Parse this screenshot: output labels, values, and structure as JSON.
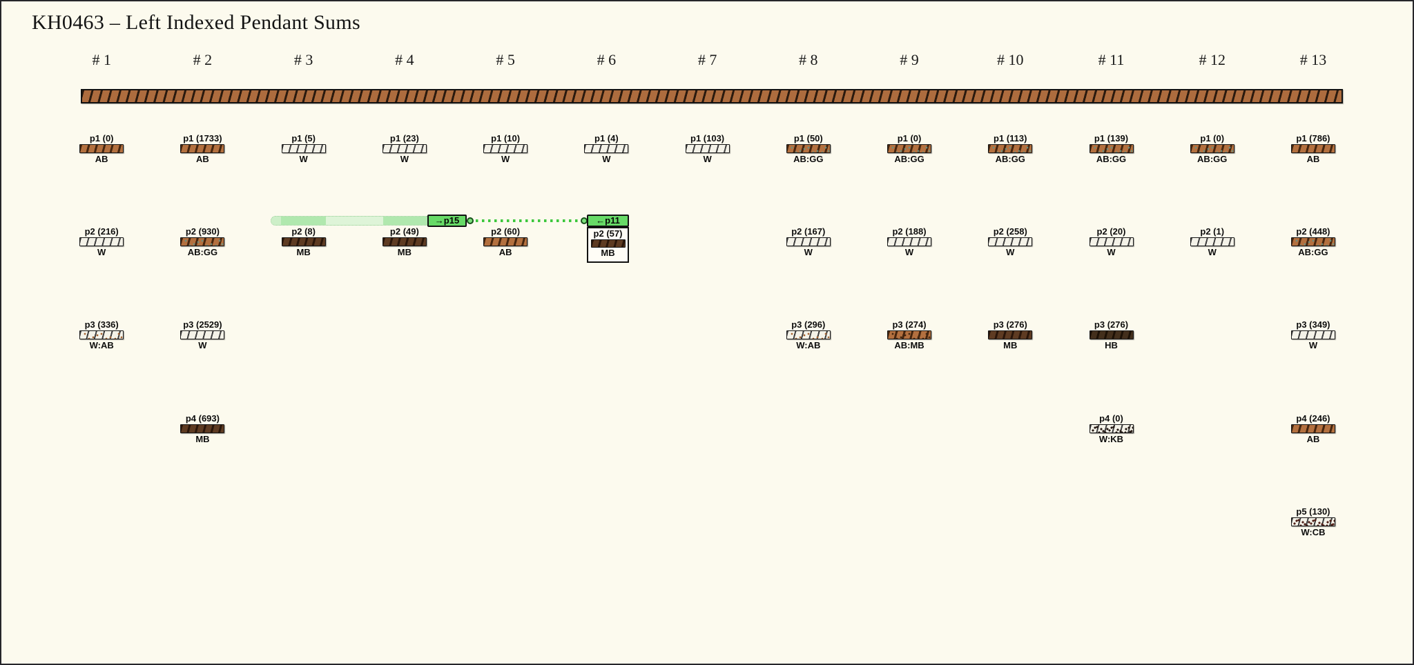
{
  "title": "KH0463 – Left Indexed Pendant Sums",
  "columns": [
    {
      "header": "# 1",
      "pendants": [
        {
          "label": "p1 (0)",
          "color_class": "AB"
        },
        {
          "label": "p2 (216)",
          "color_class": "W"
        },
        {
          "label": "p3 (336)",
          "color_class": "W:AB"
        }
      ]
    },
    {
      "header": "# 2",
      "pendants": [
        {
          "label": "p1 (1733)",
          "color_class": "AB"
        },
        {
          "label": "p2 (930)",
          "color_class": "AB:GG"
        },
        {
          "label": "p3 (2529)",
          "color_class": "W"
        },
        {
          "label": "p4 (693)",
          "color_class": "MB"
        }
      ]
    },
    {
      "header": "# 3",
      "pendants": [
        {
          "label": "p1 (5)",
          "color_class": "W"
        },
        {
          "label": "p2 (8)",
          "color_class": "MB"
        }
      ]
    },
    {
      "header": "# 4",
      "pendants": [
        {
          "label": "p1 (23)",
          "color_class": "W"
        },
        {
          "label": "p2 (49)",
          "color_class": "MB"
        }
      ]
    },
    {
      "header": "# 5",
      "pendants": [
        {
          "label": "p1 (10)",
          "color_class": "W"
        },
        {
          "label": "p2 (60)",
          "color_class": "AB"
        }
      ]
    },
    {
      "header": "# 6",
      "pendants": [
        {
          "label": "p1 (4)",
          "color_class": "W"
        },
        {
          "label": "p2 (57)",
          "color_class": "MB",
          "selected": true
        }
      ]
    },
    {
      "header": "# 7",
      "pendants": [
        {
          "label": "p1 (103)",
          "color_class": "W"
        }
      ]
    },
    {
      "header": "# 8",
      "pendants": [
        {
          "label": "p1 (50)",
          "color_class": "AB:GG"
        },
        {
          "label": "p2 (167)",
          "color_class": "W"
        },
        {
          "label": "p3 (296)",
          "color_class": "W:AB"
        }
      ]
    },
    {
      "header": "# 9",
      "pendants": [
        {
          "label": "p1 (0)",
          "color_class": "AB:GG"
        },
        {
          "label": "p2 (188)",
          "color_class": "W"
        },
        {
          "label": "p3 (274)",
          "color_class": "AB:MB"
        }
      ]
    },
    {
      "header": "# 10",
      "pendants": [
        {
          "label": "p1 (113)",
          "color_class": "AB:GG"
        },
        {
          "label": "p2 (258)",
          "color_class": "W"
        },
        {
          "label": "p3 (276)",
          "color_class": "MB"
        }
      ]
    },
    {
      "header": "# 11",
      "pendants": [
        {
          "label": "p1 (139)",
          "color_class": "AB:GG"
        },
        {
          "label": "p2 (20)",
          "color_class": "W"
        },
        {
          "label": "p3 (276)",
          "color_class": "HB"
        },
        {
          "label": "p4 (0)",
          "color_class": "W:KB"
        }
      ]
    },
    {
      "header": "# 12",
      "pendants": [
        {
          "label": "p1 (0)",
          "color_class": "AB:GG"
        },
        {
          "label": "p2 (1)",
          "color_class": "W"
        }
      ]
    },
    {
      "header": "# 13",
      "pendants": [
        {
          "label": "p1 (786)",
          "color_class": "AB"
        },
        {
          "label": "p2 (448)",
          "color_class": "AB:GG"
        },
        {
          "label": "p3 (349)",
          "color_class": "W"
        },
        {
          "label": "p4 (246)",
          "color_class": "AB"
        },
        {
          "label": "p5 (130)",
          "color_class": "W:CB"
        }
      ]
    }
  ],
  "link": {
    "source_label": "→p15",
    "target_label": "←p11"
  },
  "color_classes": {
    "AB": {
      "base": "#b3703f",
      "stripe": "#46260f",
      "stripe_width": 3
    },
    "W": {
      "base": "#f4f2e8",
      "stripe": "#3f3f3f",
      "stripe_width": 2
    },
    "MB": {
      "base": "#5e3b22",
      "stripe": "#2a160a",
      "stripe_width": 3
    },
    "HB": {
      "base": "#432f1c",
      "stripe": "#1d1106",
      "stripe_width": 3
    },
    "AB:GG": {
      "base": "#b3703f",
      "stripe": "#46260f",
      "stripe_width": 3,
      "speckle": "#6d8d7b"
    },
    "W:AB": {
      "base": "#f4f2e8",
      "stripe": "#3f3f3f",
      "stripe_width": 2,
      "speckle": "#a3602f"
    },
    "AB:MB": {
      "base": "#b3703f",
      "stripe": "#46260f",
      "stripe_width": 3,
      "speckle": "#41250f"
    },
    "W:KB": {
      "base": "#f4f2e8",
      "stripe": "#3f3f3f",
      "stripe_width": 2,
      "speckle": "#221610",
      "dense": true
    },
    "W:CB": {
      "base": "#f4f2e8",
      "stripe": "#3f3f3f",
      "stripe_width": 2,
      "speckle": "#4e1d15",
      "dense": true
    }
  },
  "theme": {
    "background": "#fcfaee",
    "cord_brown": "#ad6c3e",
    "accent_green": "#67da67",
    "pill_green": "#def4d8",
    "connector_green": "#3dc73d"
  }
}
